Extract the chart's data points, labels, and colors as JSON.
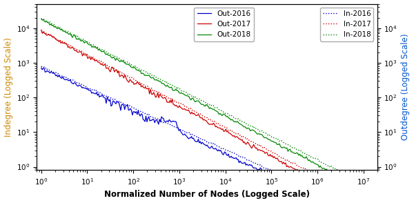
{
  "xlabel": "Normalized Number of Nodes (Logged Scale)",
  "ylabel_left": "Indegree (Logged Scale)",
  "ylabel_right": "Outdegree (Logged Scale)",
  "xlim": [
    0.8,
    20000000.0
  ],
  "ylim": [
    0.8,
    50000
  ],
  "colors": {
    "2016": "#0000cc",
    "2017": "#cc0000",
    "2018": "#008800"
  },
  "figsize": [
    6.0,
    2.94
  ],
  "dpi": 100
}
